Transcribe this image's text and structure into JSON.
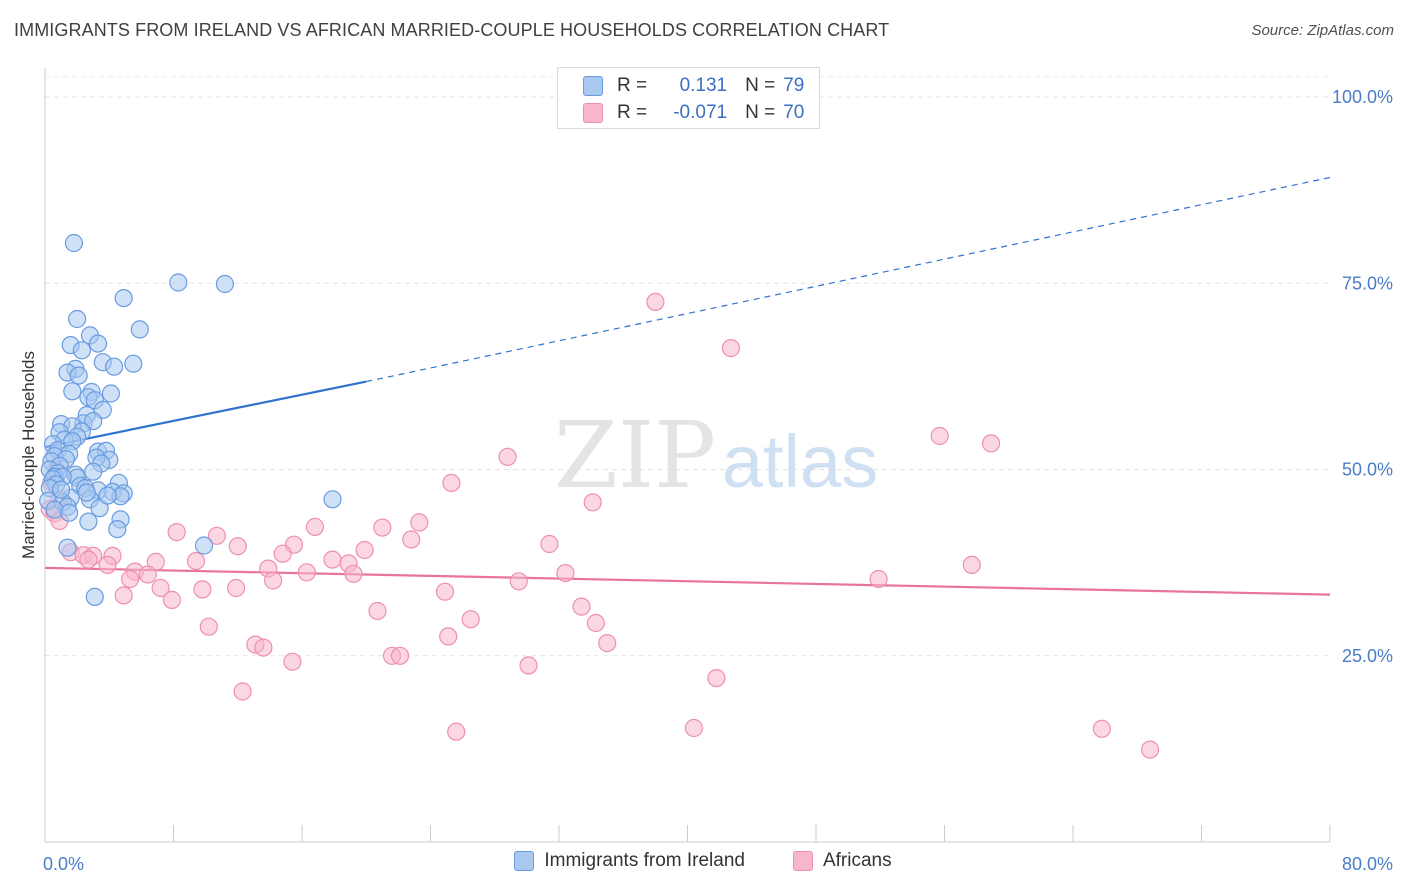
{
  "header": {
    "title": "IMMIGRANTS FROM IRELAND VS AFRICAN MARRIED-COUPLE HOUSEHOLDS CORRELATION CHART",
    "source": "Source: ZipAtlas.com"
  },
  "watermark": {
    "part1": "ZIP",
    "part2": "atlas"
  },
  "stats_legend": {
    "rows": [
      {
        "r_label": "R =",
        "r_value": "0.131",
        "n_label": "N =",
        "n_value": "79",
        "color": "#a8c8f0"
      },
      {
        "r_label": "R =",
        "r_value": "-0.071",
        "n_label": "N =",
        "n_value": "70",
        "color": "#f7b6cb"
      }
    ]
  },
  "colors": {
    "blue_fill": "#a8c8f0",
    "blue_stroke": "#6a9be0",
    "blue_line": "#2f73d0",
    "pink_fill": "#f7b6cb",
    "pink_stroke": "#ee8fae",
    "pink_line": "#e8739c",
    "axis_label": "#4a7cc8"
  },
  "chart_data": {
    "type": "scatter",
    "title": "IMMIGRANTS FROM IRELAND VS AFRICAN MARRIED-COUPLE HOUSEHOLDS CORRELATION CHART",
    "xlabel": "",
    "ylabel": "Married-couple Households",
    "xlim": [
      0,
      80
    ],
    "ylim": [
      0,
      102
    ],
    "x_tick_labels": [
      "0.0%",
      "80.0%"
    ],
    "y_ticks": [
      25,
      50,
      75,
      100
    ],
    "y_tick_labels": [
      "25.0%",
      "50.0%",
      "75.0%",
      "100.0%"
    ],
    "grid": true,
    "legend_position": "bottom-center",
    "series": [
      {
        "name": "Immigrants from Ireland",
        "r": 0.131,
        "n": 79,
        "trend": {
          "x0": 0,
          "y0": 53.0,
          "x1": 20,
          "y1": 61.8,
          "x_end": 80,
          "y_end": 89.2
        },
        "points": [
          [
            1.8,
            80.4
          ],
          [
            8.3,
            75.1
          ],
          [
            11.2,
            74.9
          ],
          [
            4.9,
            73.0
          ],
          [
            2.0,
            70.2
          ],
          [
            5.9,
            68.8
          ],
          [
            2.8,
            68.0
          ],
          [
            1.6,
            66.7
          ],
          [
            3.3,
            66.9
          ],
          [
            2.3,
            66.0
          ],
          [
            3.6,
            64.4
          ],
          [
            5.5,
            64.2
          ],
          [
            1.9,
            63.5
          ],
          [
            4.3,
            63.8
          ],
          [
            1.4,
            63.0
          ],
          [
            2.1,
            62.6
          ],
          [
            1.7,
            60.5
          ],
          [
            2.9,
            60.4
          ],
          [
            4.1,
            60.2
          ],
          [
            2.7,
            59.7
          ],
          [
            3.1,
            59.3
          ],
          [
            3.6,
            58.0
          ],
          [
            2.6,
            57.3
          ],
          [
            1.0,
            56.1
          ],
          [
            2.4,
            56.2
          ],
          [
            3.0,
            56.5
          ],
          [
            1.7,
            55.8
          ],
          [
            0.9,
            55.0
          ],
          [
            2.3,
            55.1
          ],
          [
            2.0,
            54.4
          ],
          [
            1.2,
            54.0
          ],
          [
            1.7,
            53.8
          ],
          [
            0.5,
            53.4
          ],
          [
            0.8,
            52.6
          ],
          [
            3.3,
            52.4
          ],
          [
            3.8,
            52.5
          ],
          [
            1.5,
            52.1
          ],
          [
            0.6,
            51.8
          ],
          [
            1.3,
            51.4
          ],
          [
            4.0,
            51.3
          ],
          [
            3.2,
            51.6
          ],
          [
            0.4,
            51.1
          ],
          [
            0.9,
            50.5
          ],
          [
            3.5,
            50.8
          ],
          [
            0.3,
            50.0
          ],
          [
            3.0,
            49.7
          ],
          [
            0.8,
            49.5
          ],
          [
            1.9,
            49.3
          ],
          [
            0.6,
            49.0
          ],
          [
            2.0,
            48.9
          ],
          [
            1.1,
            49.0
          ],
          [
            0.5,
            48.7
          ],
          [
            4.6,
            48.2
          ],
          [
            0.7,
            48.0
          ],
          [
            2.2,
            47.8
          ],
          [
            0.3,
            47.5
          ],
          [
            3.3,
            47.2
          ],
          [
            2.5,
            47.5
          ],
          [
            4.2,
            47.0
          ],
          [
            4.9,
            46.8
          ],
          [
            4.7,
            46.4
          ],
          [
            1.6,
            46.2
          ],
          [
            2.8,
            46.0
          ],
          [
            17.9,
            46.0
          ],
          [
            0.2,
            45.8
          ],
          [
            1.1,
            45.6
          ],
          [
            1.4,
            45.0
          ],
          [
            3.4,
            44.8
          ],
          [
            0.6,
            44.6
          ],
          [
            1.5,
            44.2
          ],
          [
            2.7,
            43.0
          ],
          [
            4.7,
            43.3
          ],
          [
            4.5,
            42.0
          ],
          [
            9.9,
            39.8
          ],
          [
            1.4,
            39.5
          ],
          [
            3.1,
            32.9
          ],
          [
            1.0,
            47.3
          ],
          [
            2.6,
            46.9
          ],
          [
            3.9,
            46.5
          ]
        ]
      },
      {
        "name": "Africans",
        "r": -0.071,
        "n": 70,
        "trend": {
          "x0": 0,
          "y0": 36.8,
          "x1": 80,
          "y1": 33.2
        },
        "points": [
          [
            38.0,
            72.5
          ],
          [
            42.7,
            66.3
          ],
          [
            55.7,
            54.5
          ],
          [
            58.9,
            53.5
          ],
          [
            28.8,
            51.7
          ],
          [
            25.3,
            48.2
          ],
          [
            34.1,
            45.6
          ],
          [
            0.7,
            50.0
          ],
          [
            0.4,
            48.3
          ],
          [
            0.9,
            46.0
          ],
          [
            0.3,
            44.7
          ],
          [
            0.6,
            44.1
          ],
          [
            0.9,
            43.1
          ],
          [
            8.2,
            41.6
          ],
          [
            10.7,
            41.1
          ],
          [
            16.8,
            42.3
          ],
          [
            21.0,
            42.2
          ],
          [
            23.3,
            42.9
          ],
          [
            12.0,
            39.7
          ],
          [
            15.5,
            39.9
          ],
          [
            22.8,
            40.6
          ],
          [
            31.4,
            40.0
          ],
          [
            19.9,
            39.2
          ],
          [
            1.6,
            38.9
          ],
          [
            2.4,
            38.5
          ],
          [
            3.0,
            38.4
          ],
          [
            4.2,
            38.4
          ],
          [
            14.8,
            38.7
          ],
          [
            2.7,
            37.9
          ],
          [
            6.9,
            37.6
          ],
          [
            9.4,
            37.7
          ],
          [
            17.9,
            37.9
          ],
          [
            18.9,
            37.4
          ],
          [
            3.9,
            37.2
          ],
          [
            13.9,
            36.7
          ],
          [
            5.6,
            36.3
          ],
          [
            16.3,
            36.2
          ],
          [
            19.2,
            36.0
          ],
          [
            32.4,
            36.1
          ],
          [
            6.4,
            35.9
          ],
          [
            5.3,
            35.3
          ],
          [
            14.2,
            35.1
          ],
          [
            29.5,
            35.0
          ],
          [
            51.9,
            35.3
          ],
          [
            57.7,
            37.2
          ],
          [
            7.2,
            34.1
          ],
          [
            9.8,
            33.9
          ],
          [
            11.9,
            34.1
          ],
          [
            24.9,
            33.6
          ],
          [
            4.9,
            33.1
          ],
          [
            7.9,
            32.5
          ],
          [
            33.4,
            31.6
          ],
          [
            20.7,
            31.0
          ],
          [
            26.5,
            29.9
          ],
          [
            34.3,
            29.4
          ],
          [
            10.2,
            28.9
          ],
          [
            25.1,
            27.6
          ],
          [
            35.0,
            26.7
          ],
          [
            13.1,
            26.5
          ],
          [
            13.6,
            26.1
          ],
          [
            21.6,
            25.0
          ],
          [
            22.1,
            25.0
          ],
          [
            15.4,
            24.2
          ],
          [
            30.1,
            23.7
          ],
          [
            41.8,
            22.0
          ],
          [
            12.3,
            20.2
          ],
          [
            25.6,
            14.8
          ],
          [
            40.4,
            15.3
          ],
          [
            65.8,
            15.2
          ],
          [
            68.8,
            12.4
          ]
        ]
      }
    ]
  },
  "bottom_legend": {
    "items": [
      {
        "label": "Immigrants from Ireland"
      },
      {
        "label": "Africans"
      }
    ]
  }
}
